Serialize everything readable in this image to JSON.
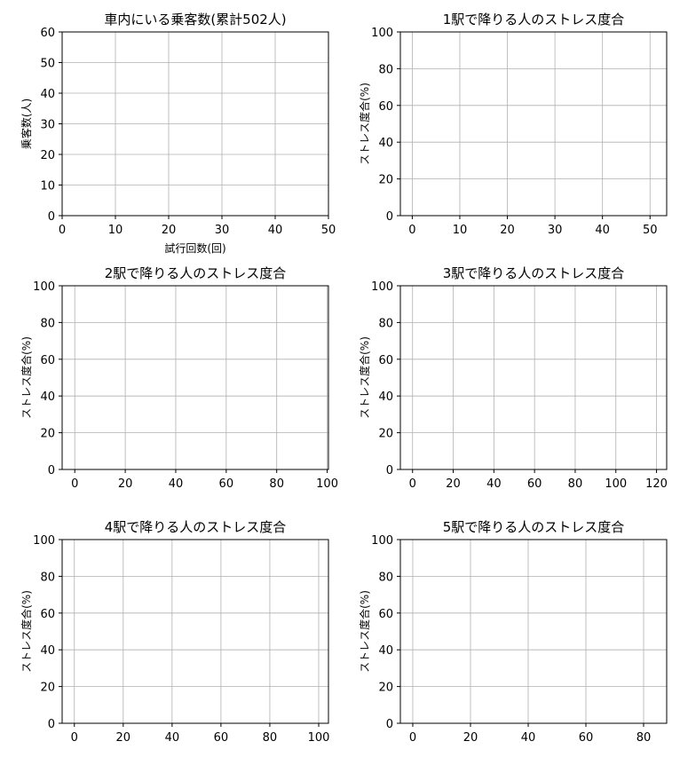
{
  "chart_data": [
    {
      "type": "line",
      "title": "車内にいる乗客数(累計502人)",
      "xlabel": "試行回数(回)",
      "ylabel": "乗客数(人)",
      "xlim": [
        0,
        50
      ],
      "ylim": [
        0,
        60
      ],
      "xticks": [
        0,
        10,
        20,
        30,
        40,
        50
      ],
      "yticks": [
        0,
        10,
        20,
        30,
        40,
        50,
        60
      ],
      "grid": true,
      "series": []
    },
    {
      "type": "line",
      "title": "1駅で降りる人のストレス度合",
      "xlabel": "",
      "ylabel": "ストレス度合(%)",
      "xlim": [
        -2.5,
        53.5
      ],
      "ylim": [
        0,
        100
      ],
      "xticks": [
        0,
        10,
        20,
        30,
        40,
        50
      ],
      "yticks": [
        0,
        20,
        40,
        60,
        80,
        100
      ],
      "grid": true,
      "series": []
    },
    {
      "type": "line",
      "title": "2駅で降りる人のストレス度合",
      "xlabel": "",
      "ylabel": "ストレス度合(%)",
      "xlim": [
        -5,
        100.5
      ],
      "ylim": [
        0,
        100
      ],
      "xticks": [
        0,
        20,
        40,
        60,
        80,
        100
      ],
      "yticks": [
        0,
        20,
        40,
        60,
        80,
        100
      ],
      "grid": true,
      "series": []
    },
    {
      "type": "line",
      "title": "3駅で降りる人のストレス度合",
      "xlabel": "",
      "ylabel": "ストレス度合(%)",
      "xlim": [
        -6,
        125
      ],
      "ylim": [
        0,
        100
      ],
      "xticks": [
        0,
        20,
        40,
        60,
        80,
        100,
        120
      ],
      "yticks": [
        0,
        20,
        40,
        60,
        80,
        100
      ],
      "grid": true,
      "series": []
    },
    {
      "type": "line",
      "title": "4駅で降りる人のストレス度合",
      "xlabel": "",
      "ylabel": "ストレス度合(%)",
      "xlim": [
        -5,
        104
      ],
      "ylim": [
        0,
        100
      ],
      "xticks": [
        0,
        20,
        40,
        60,
        80,
        100
      ],
      "yticks": [
        0,
        20,
        40,
        60,
        80,
        100
      ],
      "grid": true,
      "series": []
    },
    {
      "type": "line",
      "title": "5駅で降りる人のストレス度合",
      "xlabel": "",
      "ylabel": "ストレス度合(%)",
      "xlim": [
        -4.3,
        88
      ],
      "ylim": [
        0,
        100
      ],
      "xticks": [
        0,
        20,
        40,
        60,
        80
      ],
      "yticks": [
        0,
        20,
        40,
        60,
        80,
        100
      ],
      "grid": true,
      "series": []
    }
  ]
}
